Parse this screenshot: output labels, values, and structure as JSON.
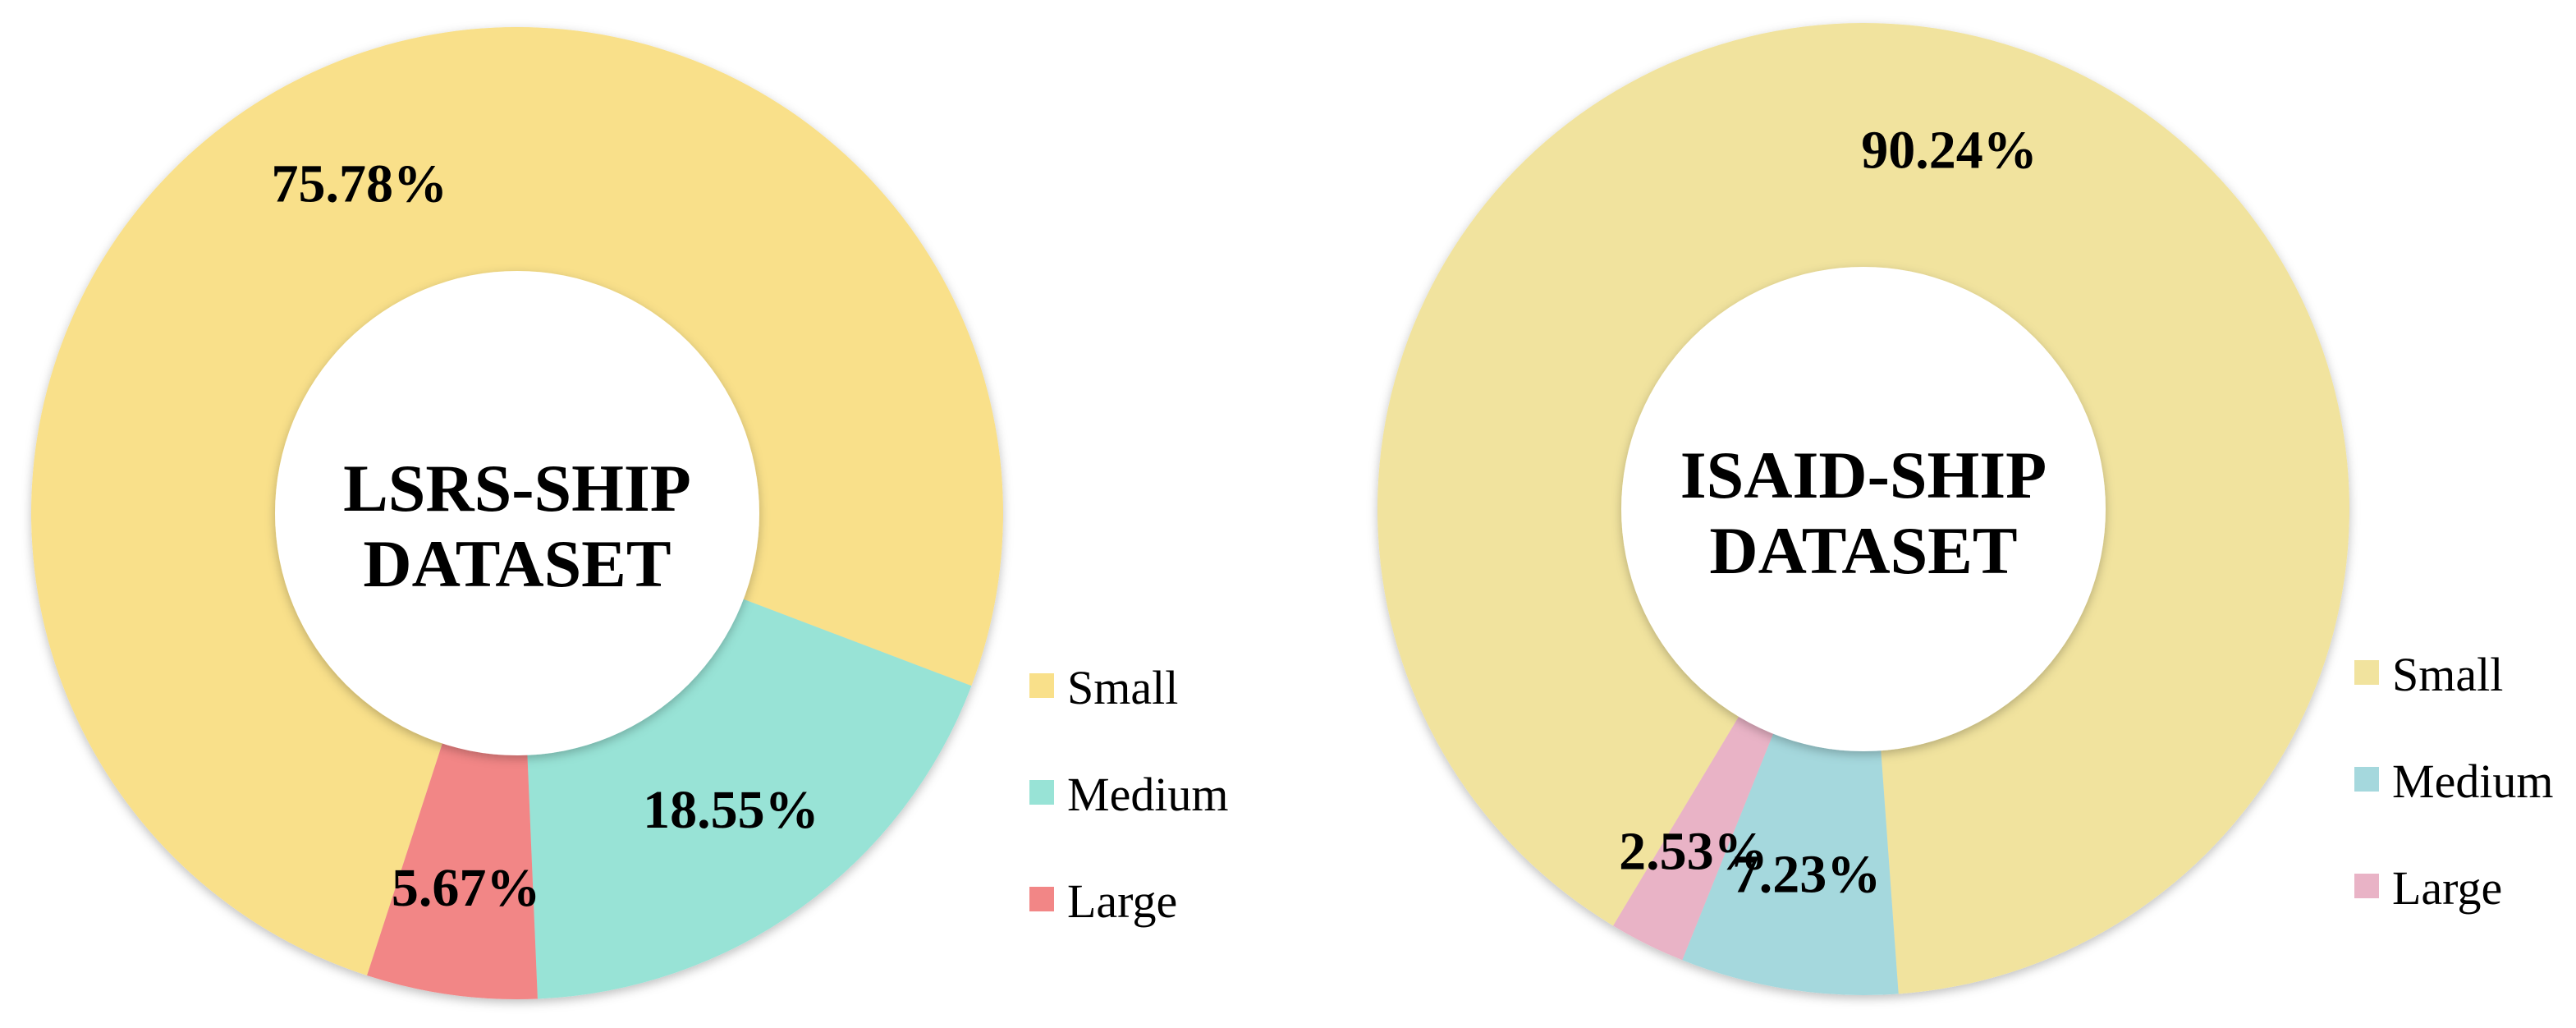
{
  "chart_data": [
    {
      "type": "pie",
      "title": "LSRS-SHIP DATASET",
      "center_label": [
        "LSRS-SHIP",
        "DATASET"
      ],
      "categories": [
        "Small",
        "Medium",
        "Large"
      ],
      "values": [
        75.78,
        18.55,
        5.67
      ],
      "data_labels": [
        "75.78%",
        "18.55%",
        "5.67%"
      ],
      "colors": [
        "#f9e08a",
        "#98e3d6",
        "#f28686"
      ],
      "legend": {
        "entries": [
          "Small",
          "Medium",
          "Large"
        ],
        "position": "bottom-right"
      }
    },
    {
      "type": "pie",
      "title": "ISAID-SHIP DATASET",
      "center_label": [
        "ISAID-SHIP",
        "DATASET"
      ],
      "categories": [
        "Small",
        "Medium",
        "Large"
      ],
      "values": [
        90.24,
        7.23,
        2.53
      ],
      "data_labels": [
        "90.24%",
        "7.23%",
        "2.53%"
      ],
      "colors": [
        "#f1e39e",
        "#a5d8dd",
        "#e9b3c6"
      ],
      "legend": {
        "entries": [
          "Small",
          "Medium",
          "Large"
        ],
        "position": "bottom-right"
      }
    }
  ]
}
